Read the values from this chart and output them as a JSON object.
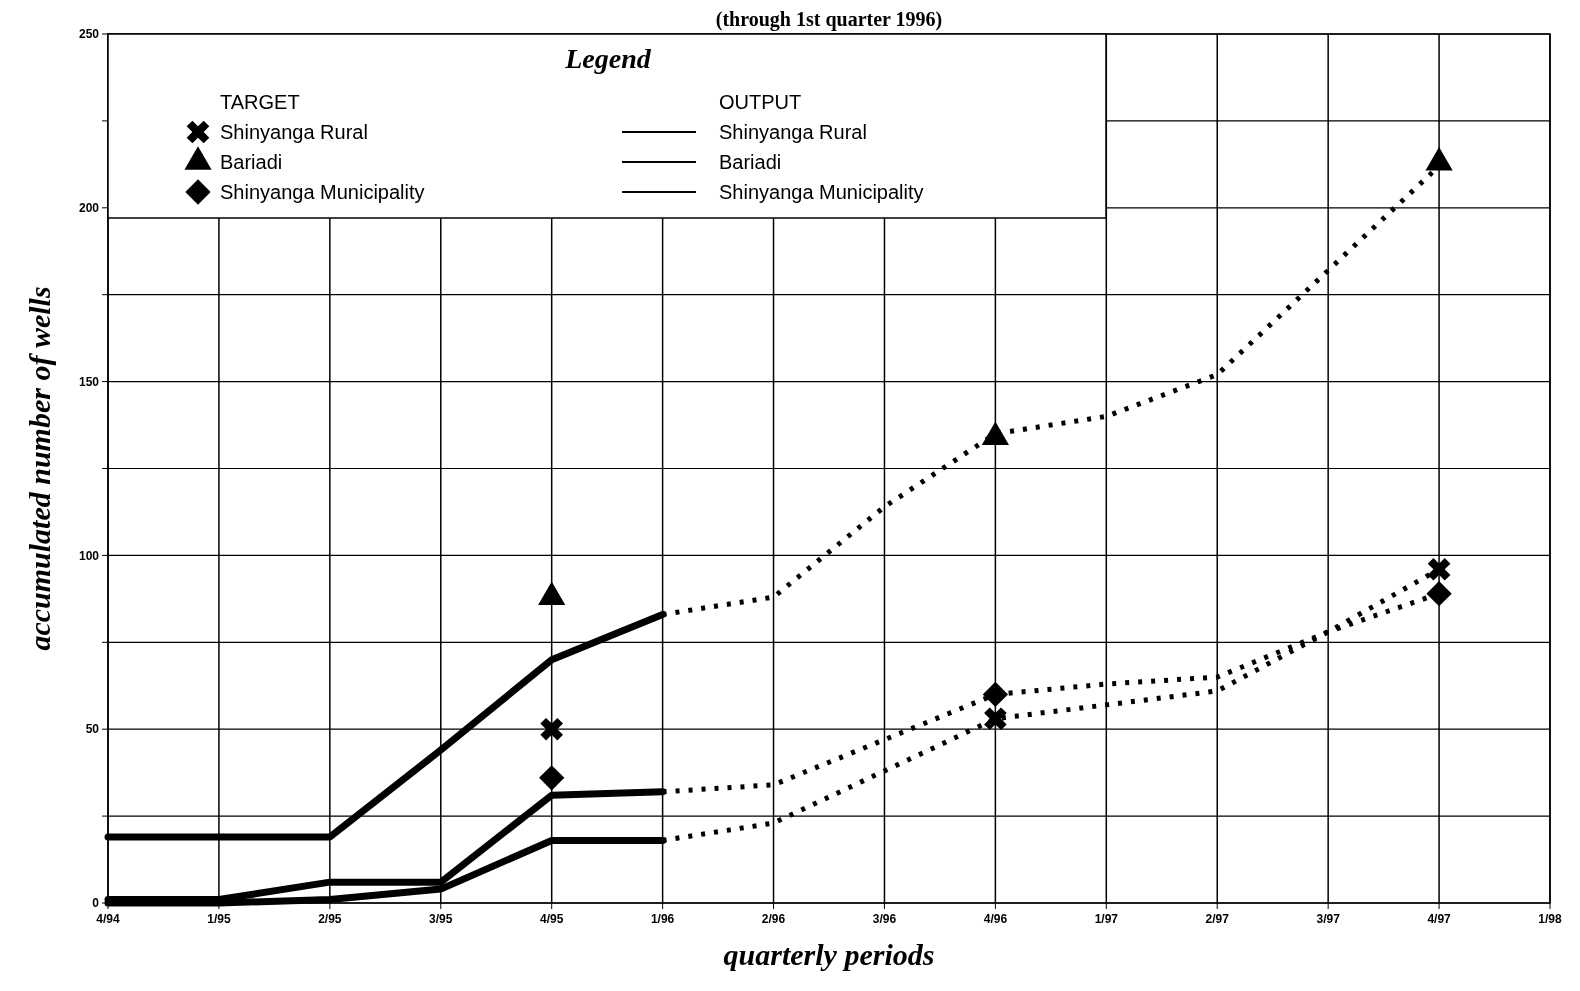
{
  "chart_data": {
    "type": "line",
    "title": "(through 1st quarter 1996)",
    "xlabel": "quarterly periods",
    "ylabel": "accumulated number of wells",
    "legend_title": "Legend",
    "annotations": [
      "TARGET",
      "OUTPUT"
    ],
    "categories": [
      "4/94",
      "1/95",
      "2/95",
      "3/95",
      "4/95",
      "1/96",
      "2/96",
      "3/96",
      "4/96",
      "1/97",
      "2/97",
      "3/97",
      "4/97",
      "1/98"
    ],
    "ylim": [
      0,
      250
    ],
    "yticks": [
      0,
      {
        "value": 25,
        "label": null
      },
      50,
      {
        "value": 75,
        "label": null
      },
      100,
      {
        "value": 125,
        "label": null
      },
      150,
      {
        "value": 175,
        "label": null
      },
      200,
      {
        "value": 225,
        "label": null
      },
      250
    ],
    "grid": true,
    "legend": "top left",
    "series": [
      {
        "name": "Shinyanga Rural",
        "type": "scatter",
        "marker": "cross",
        "color": "#000000",
        "values": [
          null,
          null,
          null,
          null,
          50,
          null,
          null,
          null,
          53,
          null,
          null,
          null,
          96,
          null
        ]
      },
      {
        "name": "Bariadi",
        "type": "scatter",
        "marker": "triangle",
        "color": "#000000",
        "values": [
          null,
          null,
          null,
          null,
          88,
          null,
          null,
          null,
          134,
          null,
          null,
          null,
          213,
          null
        ]
      },
      {
        "name": "Shinyanga Municipality",
        "type": "scatter",
        "marker": "diamond",
        "color": "#000000",
        "values": [
          null,
          null,
          null,
          null,
          36,
          null,
          null,
          null,
          60,
          null,
          null,
          null,
          89,
          null
        ]
      },
      {
        "name": "Shinyanga Rural",
        "type": "line",
        "line_style": "solid",
        "color": "#000000",
        "values": [
          0,
          0,
          1,
          4,
          18,
          18,
          null,
          null,
          null,
          null,
          null,
          null,
          null,
          null
        ]
      },
      {
        "name": "Bariadi",
        "type": "line",
        "line_style": "solid",
        "color": "#000000",
        "values": [
          19,
          19,
          19,
          44,
          70,
          83,
          null,
          null,
          null,
          null,
          null,
          null,
          null,
          null
        ]
      },
      {
        "name": "Shinyanga Municipality",
        "type": "line",
        "line_style": "solid",
        "color": "#000000",
        "values": [
          1,
          1,
          6,
          6,
          31,
          32,
          null,
          null,
          null,
          null,
          null,
          null,
          null,
          null
        ]
      },
      {
        "type": "line",
        "line_style": "dotted",
        "color": "#000000",
        "values": [
          null,
          null,
          null,
          null,
          null,
          18,
          23,
          38,
          53,
          57,
          61,
          78,
          96,
          null
        ]
      },
      {
        "type": "line",
        "line_style": "dotted",
        "color": "#000000",
        "values": [
          null,
          null,
          null,
          null,
          null,
          83,
          88,
          114,
          135,
          140,
          152,
          182,
          212,
          null
        ]
      },
      {
        "type": "line",
        "line_style": "dotted",
        "color": "#000000",
        "values": [
          null,
          null,
          null,
          null,
          null,
          32,
          34,
          47,
          60,
          63,
          65,
          78,
          89,
          null
        ]
      }
    ]
  }
}
